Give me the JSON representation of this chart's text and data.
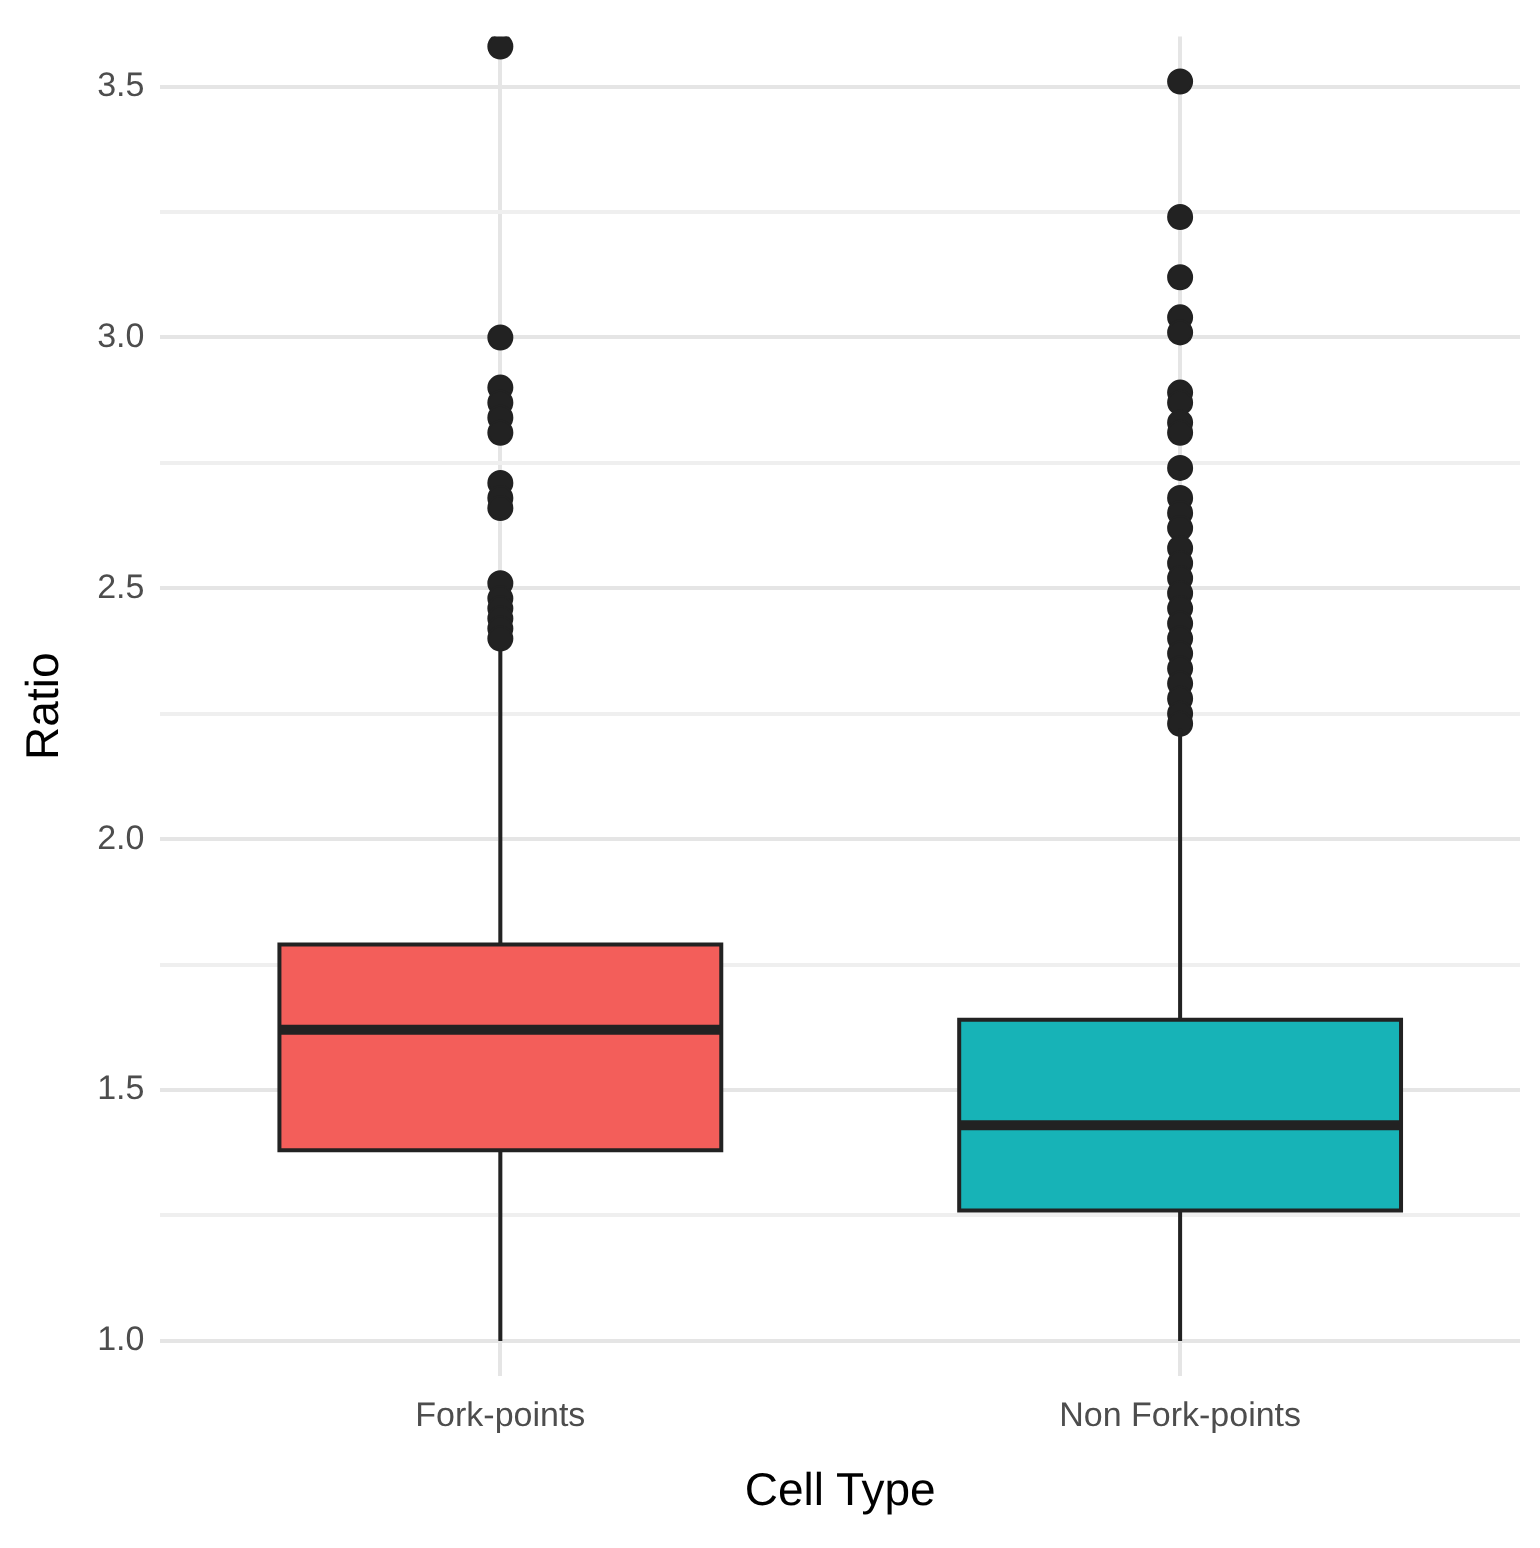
{
  "chart_data": {
    "type": "box",
    "xlabel": "Cell Type",
    "ylabel": "Ratio",
    "categories": [
      "Fork-points",
      "Non Fork-points"
    ],
    "colors": [
      "#f35e5a",
      "#17b3b7"
    ],
    "boxes": [
      {
        "low": 1.0,
        "q1": 1.38,
        "median": 1.62,
        "q3": 1.79,
        "high": 2.38,
        "outliers": [
          3.58,
          3.0,
          2.9,
          2.87,
          2.84,
          2.81,
          2.71,
          2.68,
          2.66,
          2.51,
          2.48,
          2.46,
          2.44,
          2.42,
          2.4
        ]
      },
      {
        "low": 1.0,
        "q1": 1.26,
        "median": 1.43,
        "q3": 1.64,
        "high": 2.22,
        "outliers": [
          3.51,
          3.24,
          3.12,
          3.04,
          3.01,
          2.89,
          2.87,
          2.83,
          2.81,
          2.74,
          2.68,
          2.65,
          2.62,
          2.58,
          2.55,
          2.52,
          2.49,
          2.46,
          2.43,
          2.4,
          2.37,
          2.34,
          2.31,
          2.28,
          2.25,
          2.23
        ]
      }
    ],
    "ylim": [
      0.93,
      3.6
    ],
    "yticks": [
      {
        "value": 1,
        "label": "1.0"
      },
      {
        "value": 1.25,
        "label": null
      },
      {
        "value": 1.5,
        "label": "1.5"
      },
      {
        "value": 1.75,
        "label": null
      },
      {
        "value": 2,
        "label": "2.0"
      },
      {
        "value": 2.25,
        "label": null
      },
      {
        "value": 2.5,
        "label": "2.5"
      },
      {
        "value": 2.75,
        "label": null
      },
      {
        "value": 3,
        "label": "3.0"
      },
      {
        "value": 3.25,
        "label": null
      },
      {
        "value": 3.5,
        "label": "3.5"
      }
    ],
    "grid": true,
    "legend": false,
    "marker": "circle"
  }
}
